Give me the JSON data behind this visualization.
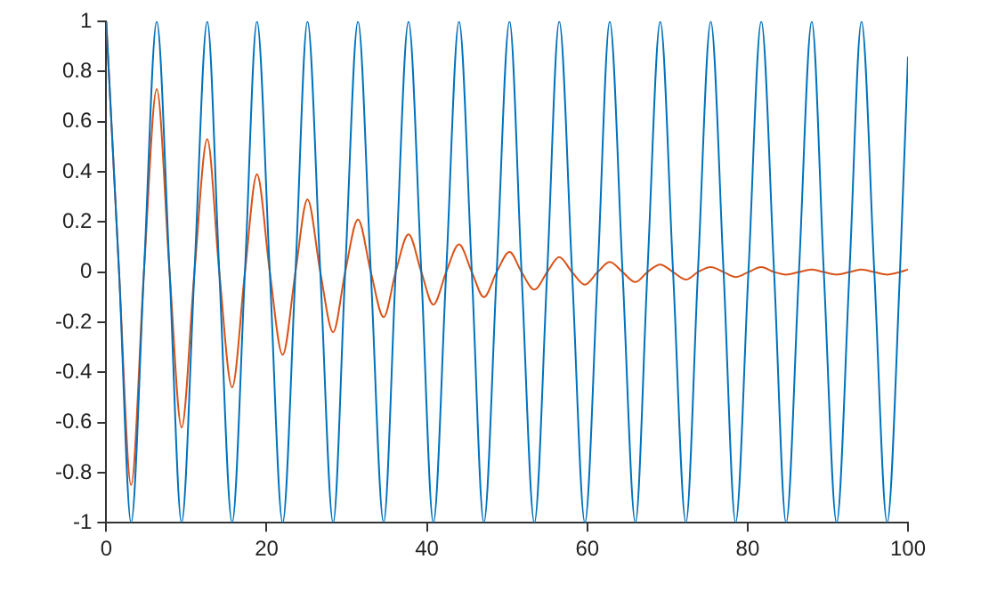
{
  "chart_data": {
    "type": "line",
    "x": [
      0,
      1.6,
      3.1,
      4.7,
      6.3,
      7.9,
      9.4,
      11,
      12.6,
      14.1,
      15.7,
      17.3,
      18.8,
      20.4,
      22,
      23.6,
      25.1,
      26.7,
      28.3,
      29.8,
      31.4,
      33,
      34.6,
      36.1,
      37.7,
      39.3,
      40.8,
      42.4,
      44,
      45.6,
      47.1,
      48.7,
      50.3,
      51.8,
      53.4,
      55,
      56.5,
      58.1,
      59.7,
      61.3,
      62.8,
      64.4,
      66,
      67.5,
      69.1,
      70.7,
      72.3,
      73.8,
      75.4,
      77,
      78.5,
      80.1,
      81.7,
      83.3,
      84.8,
      86.4,
      88,
      89.5,
      91.1,
      92.7,
      94.2,
      95.8,
      97.4,
      99,
      100
    ],
    "series": [
      {
        "color": "#0072bd",
        "values": [
          1,
          0,
          -1,
          0,
          1,
          0,
          -1,
          0,
          1,
          0,
          -1,
          0,
          1,
          0,
          -1,
          0,
          1,
          0,
          -1,
          0,
          1,
          0,
          -1,
          0,
          1,
          0,
          -1,
          0,
          1,
          0,
          -1,
          0,
          1,
          0,
          -1,
          0,
          1,
          0,
          -1,
          0,
          1,
          0,
          -1,
          0,
          1,
          0,
          -1,
          0,
          1,
          0,
          -1,
          0,
          1,
          0,
          -1,
          0,
          1,
          0,
          -1,
          0,
          1,
          0,
          -1,
          0,
          0.86
        ]
      },
      {
        "color": "#d95319",
        "values": [
          1,
          0,
          -0.85,
          0,
          0.73,
          0,
          -0.62,
          0,
          0.53,
          0,
          -0.46,
          0,
          0.39,
          0,
          -0.33,
          0,
          0.29,
          0,
          -0.24,
          0,
          0.21,
          0,
          -0.18,
          0,
          0.15,
          0,
          -0.13,
          0,
          0.11,
          0,
          -0.1,
          0,
          0.08,
          0,
          -0.07,
          0,
          0.06,
          0,
          -0.05,
          0,
          0.04,
          0,
          -0.04,
          0,
          0.03,
          0,
          -0.03,
          0,
          0.02,
          0,
          -0.02,
          0,
          0.02,
          0,
          -0.01,
          0,
          0.01,
          0,
          -0.01,
          0,
          0.01,
          0,
          -0.01,
          0,
          0.01
        ]
      }
    ],
    "xlim": [
      0,
      100
    ],
    "xticks": [
      0,
      20,
      40,
      60,
      80,
      100
    ],
    "ylim": [
      -1,
      1
    ],
    "yticks": [
      -1,
      -0.8,
      -0.6,
      -0.4,
      -0.2,
      0,
      0.2,
      0.4,
      0.6,
      0.8,
      1
    ],
    "grid": false,
    "legend": false,
    "marker": "none",
    "line_style": "solid"
  }
}
